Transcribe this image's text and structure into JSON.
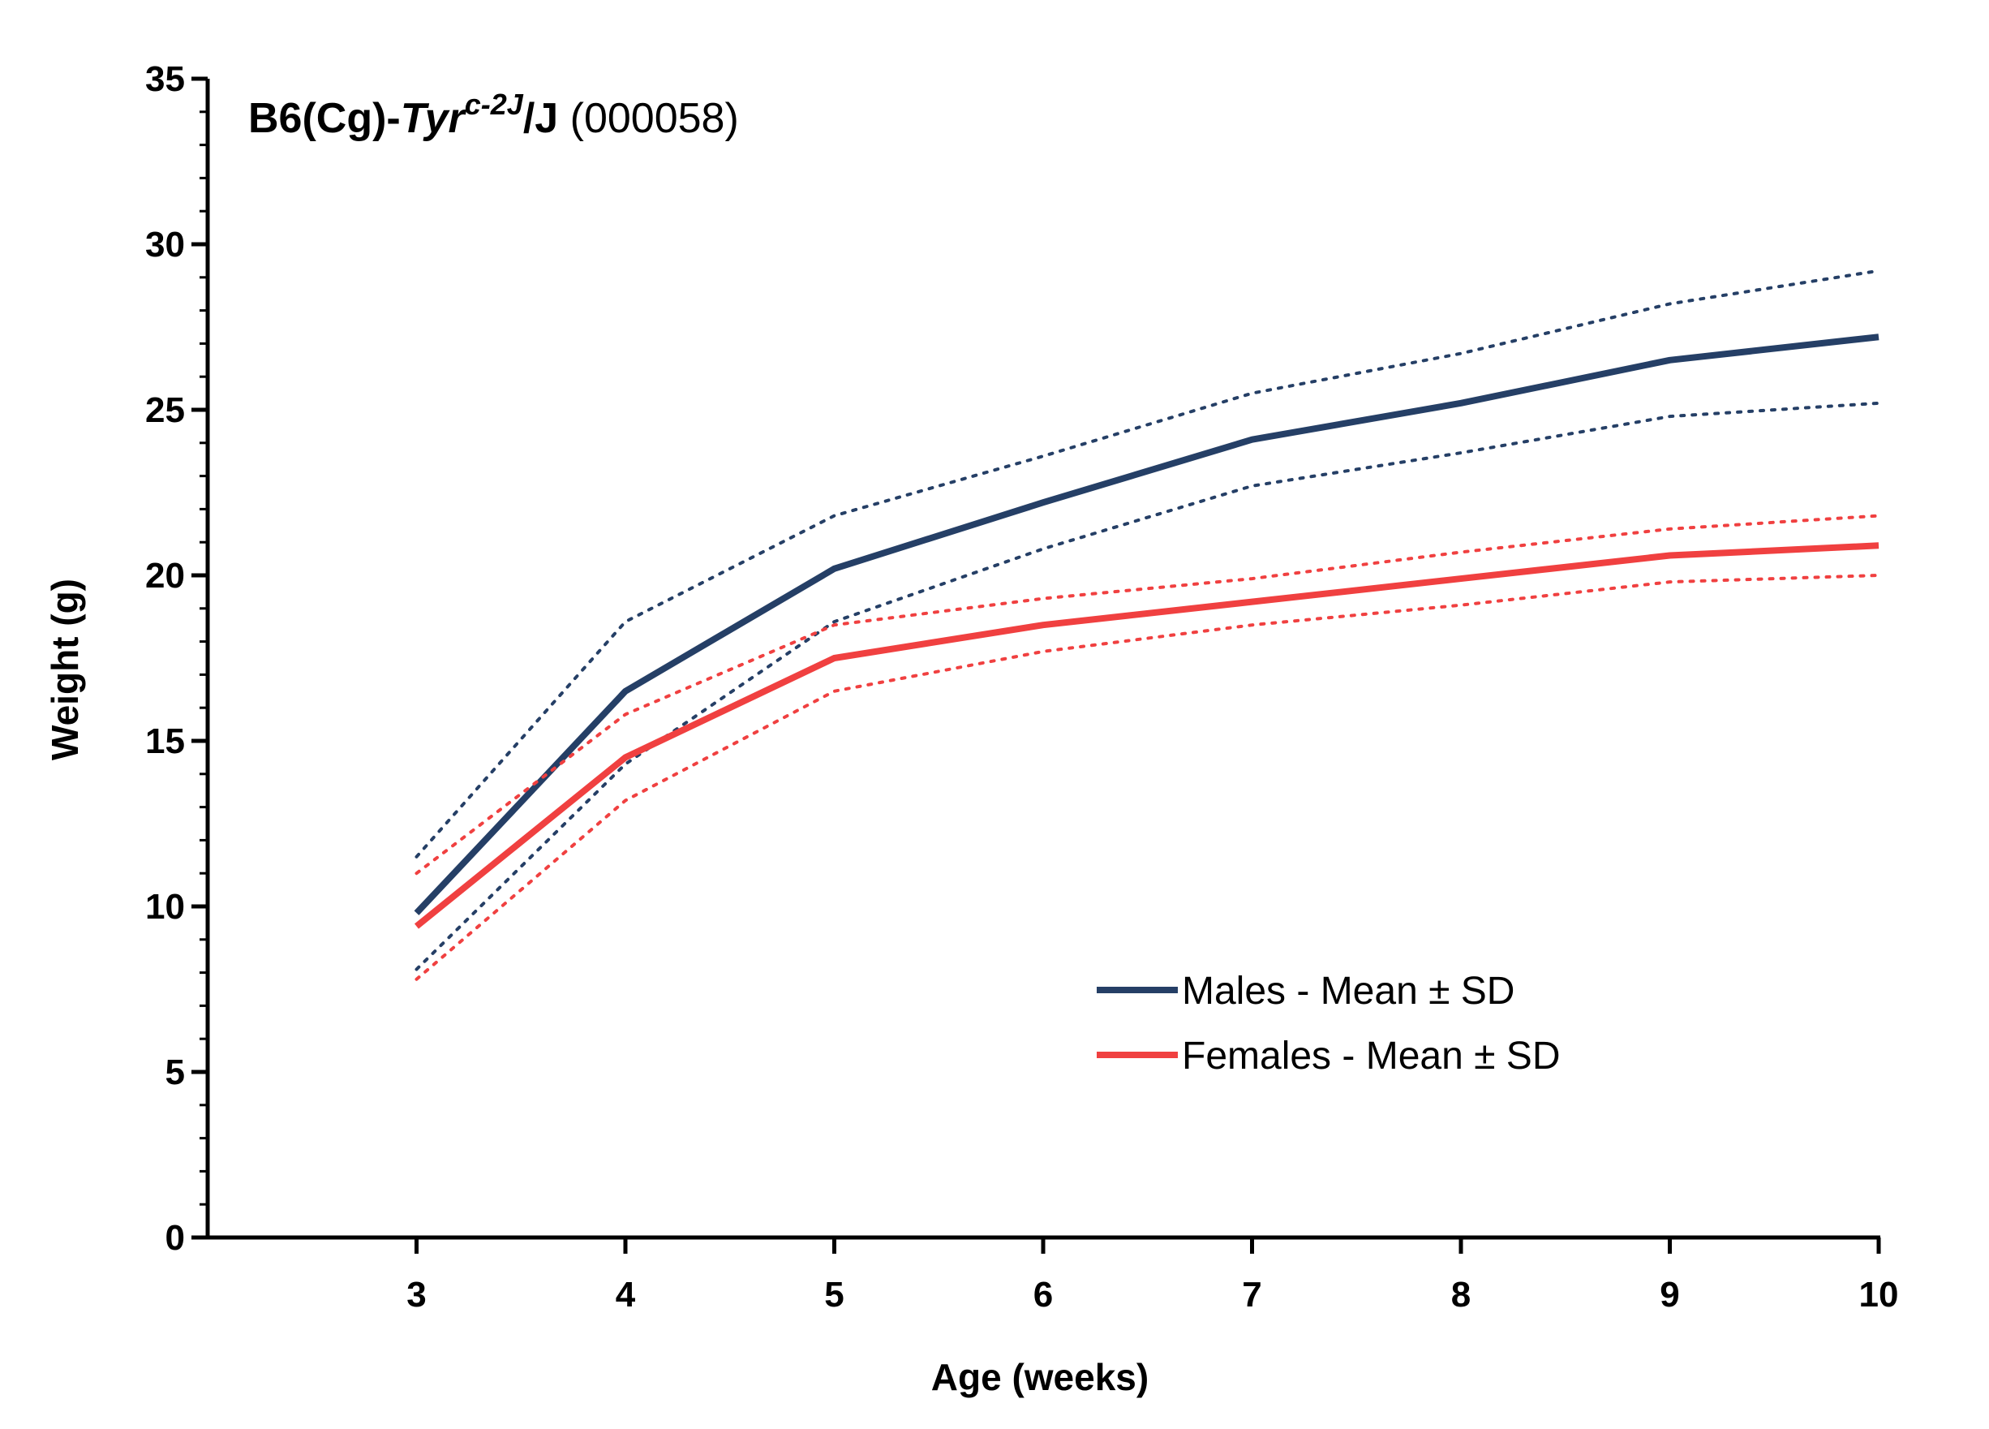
{
  "chart_data": {
    "type": "line",
    "title_parts": {
      "bold": "B6(Cg)-",
      "italic": "Tyr",
      "superscript": "c-2J",
      "after": "/J",
      "normal": " (000058)"
    },
    "xlabel": "Age (weeks)",
    "ylabel": "Weight (g)",
    "xlim": [
      2,
      10
    ],
    "ylim": [
      0,
      35
    ],
    "x_ticks": [
      3,
      4,
      5,
      6,
      7,
      8,
      9,
      10
    ],
    "y_ticks": [
      0,
      5,
      10,
      15,
      20,
      25,
      30,
      35
    ],
    "y_minor_step": 1,
    "x": [
      3,
      4,
      5,
      6,
      7,
      8,
      9,
      10
    ],
    "grid": false,
    "legend_position": "bottom-right",
    "series": [
      {
        "name": "Males - Mean ± SD",
        "color": "#253f66",
        "mean": [
          9.8,
          16.5,
          20.2,
          22.2,
          24.1,
          25.2,
          26.5,
          27.2
        ],
        "upper": [
          11.5,
          18.6,
          21.8,
          23.6,
          25.5,
          26.7,
          28.2,
          29.2
        ],
        "lower": [
          8.1,
          14.3,
          18.6,
          20.8,
          22.7,
          23.7,
          24.8,
          25.2
        ]
      },
      {
        "name": "Females - Mean ± SD",
        "color": "#f04040",
        "mean": [
          9.4,
          14.5,
          17.5,
          18.5,
          19.2,
          19.9,
          20.6,
          20.9
        ],
        "upper": [
          11.0,
          15.8,
          18.5,
          19.3,
          19.9,
          20.7,
          21.4,
          21.8
        ],
        "lower": [
          7.8,
          13.2,
          16.5,
          17.7,
          18.5,
          19.1,
          19.8,
          20.0
        ]
      }
    ]
  }
}
